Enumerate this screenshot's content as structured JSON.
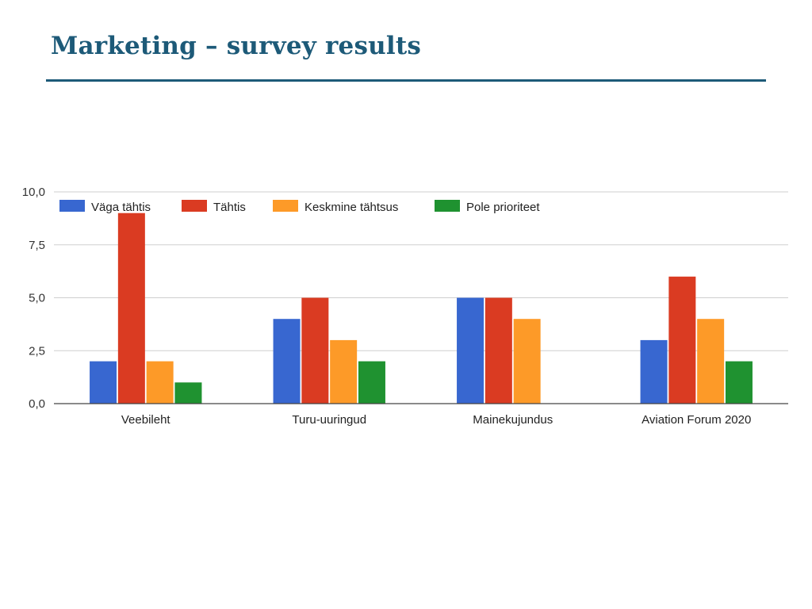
{
  "slide": {
    "title": "Marketing – survey results"
  },
  "chart_data": {
    "type": "bar",
    "categories": [
      "Veebileht",
      "Turu-uuringud",
      "Mainekujundus",
      "Aviation Forum 2020"
    ],
    "series": [
      {
        "name": "Väga tähtis",
        "color": "#3867d0",
        "values": [
          2,
          4,
          5,
          3
        ]
      },
      {
        "name": "Tähtis",
        "color": "#da3b22",
        "values": [
          9,
          5,
          5,
          6
        ]
      },
      {
        "name": "Keskmine tähtsus",
        "color": "#fd9a28",
        "values": [
          2,
          3,
          4,
          4
        ]
      },
      {
        "name": "Pole prioriteet",
        "color": "#1f9230",
        "values": [
          1,
          2,
          0,
          2
        ]
      }
    ],
    "ylim": [
      0,
      10
    ],
    "yticks": [
      0,
      2.5,
      5,
      7.5,
      10
    ],
    "ytick_labels": [
      "0,0",
      "2,5",
      "5,0",
      "7,5",
      "10,0"
    ],
    "grid": true,
    "legend": "top-left",
    "xlabel": "",
    "ylabel": ""
  }
}
